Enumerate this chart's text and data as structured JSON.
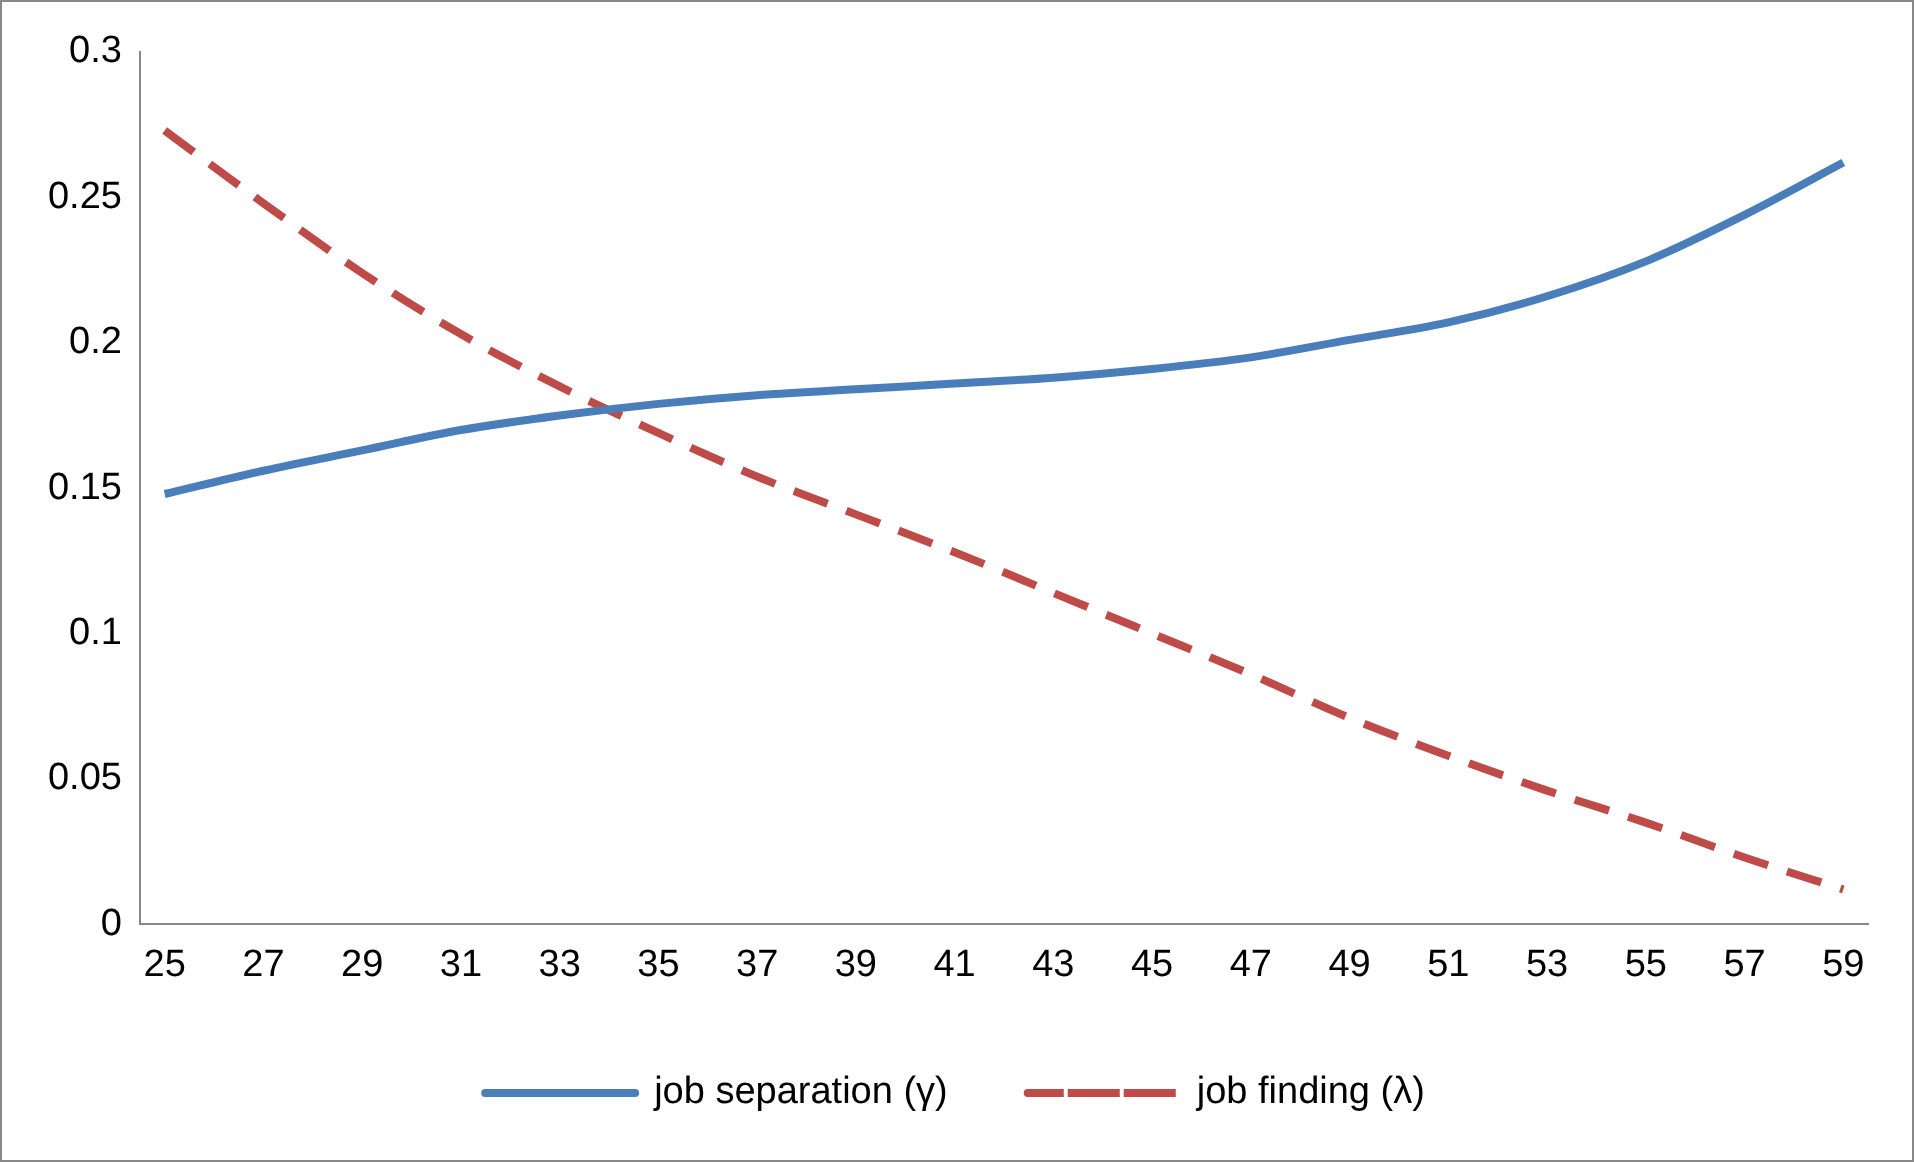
{
  "chart_data": {
    "type": "line",
    "x": [
      25,
      27,
      29,
      31,
      33,
      35,
      37,
      39,
      41,
      43,
      45,
      47,
      49,
      51,
      53,
      55,
      57,
      59
    ],
    "series": [
      {
        "name": "job separation (γ)",
        "color": "#4a7ebb",
        "line_style": "solid",
        "values": [
          0.148,
          0.156,
          0.163,
          0.17,
          0.175,
          0.179,
          0.182,
          0.184,
          0.186,
          0.188,
          0.191,
          0.195,
          0.201,
          0.207,
          0.216,
          0.228,
          0.244,
          0.262
        ]
      },
      {
        "name": "job finding (λ)",
        "color": "#be4b48",
        "line_style": "dashed",
        "values": [
          0.273,
          0.248,
          0.224,
          0.203,
          0.185,
          0.169,
          0.154,
          0.141,
          0.128,
          0.114,
          0.1,
          0.086,
          0.071,
          0.058,
          0.046,
          0.035,
          0.023,
          0.012
        ]
      }
    ],
    "xlim": [
      24.5,
      59.5
    ],
    "xticks": [
      25,
      27,
      29,
      31,
      33,
      35,
      37,
      39,
      41,
      43,
      45,
      47,
      49,
      51,
      53,
      55,
      57,
      59
    ],
    "ylim": [
      0,
      0.3
    ],
    "yticks": [
      0,
      0.05,
      0.1,
      0.15,
      0.2,
      0.25,
      0.3
    ],
    "grid": false,
    "legend": "bottom",
    "marker": "none"
  }
}
